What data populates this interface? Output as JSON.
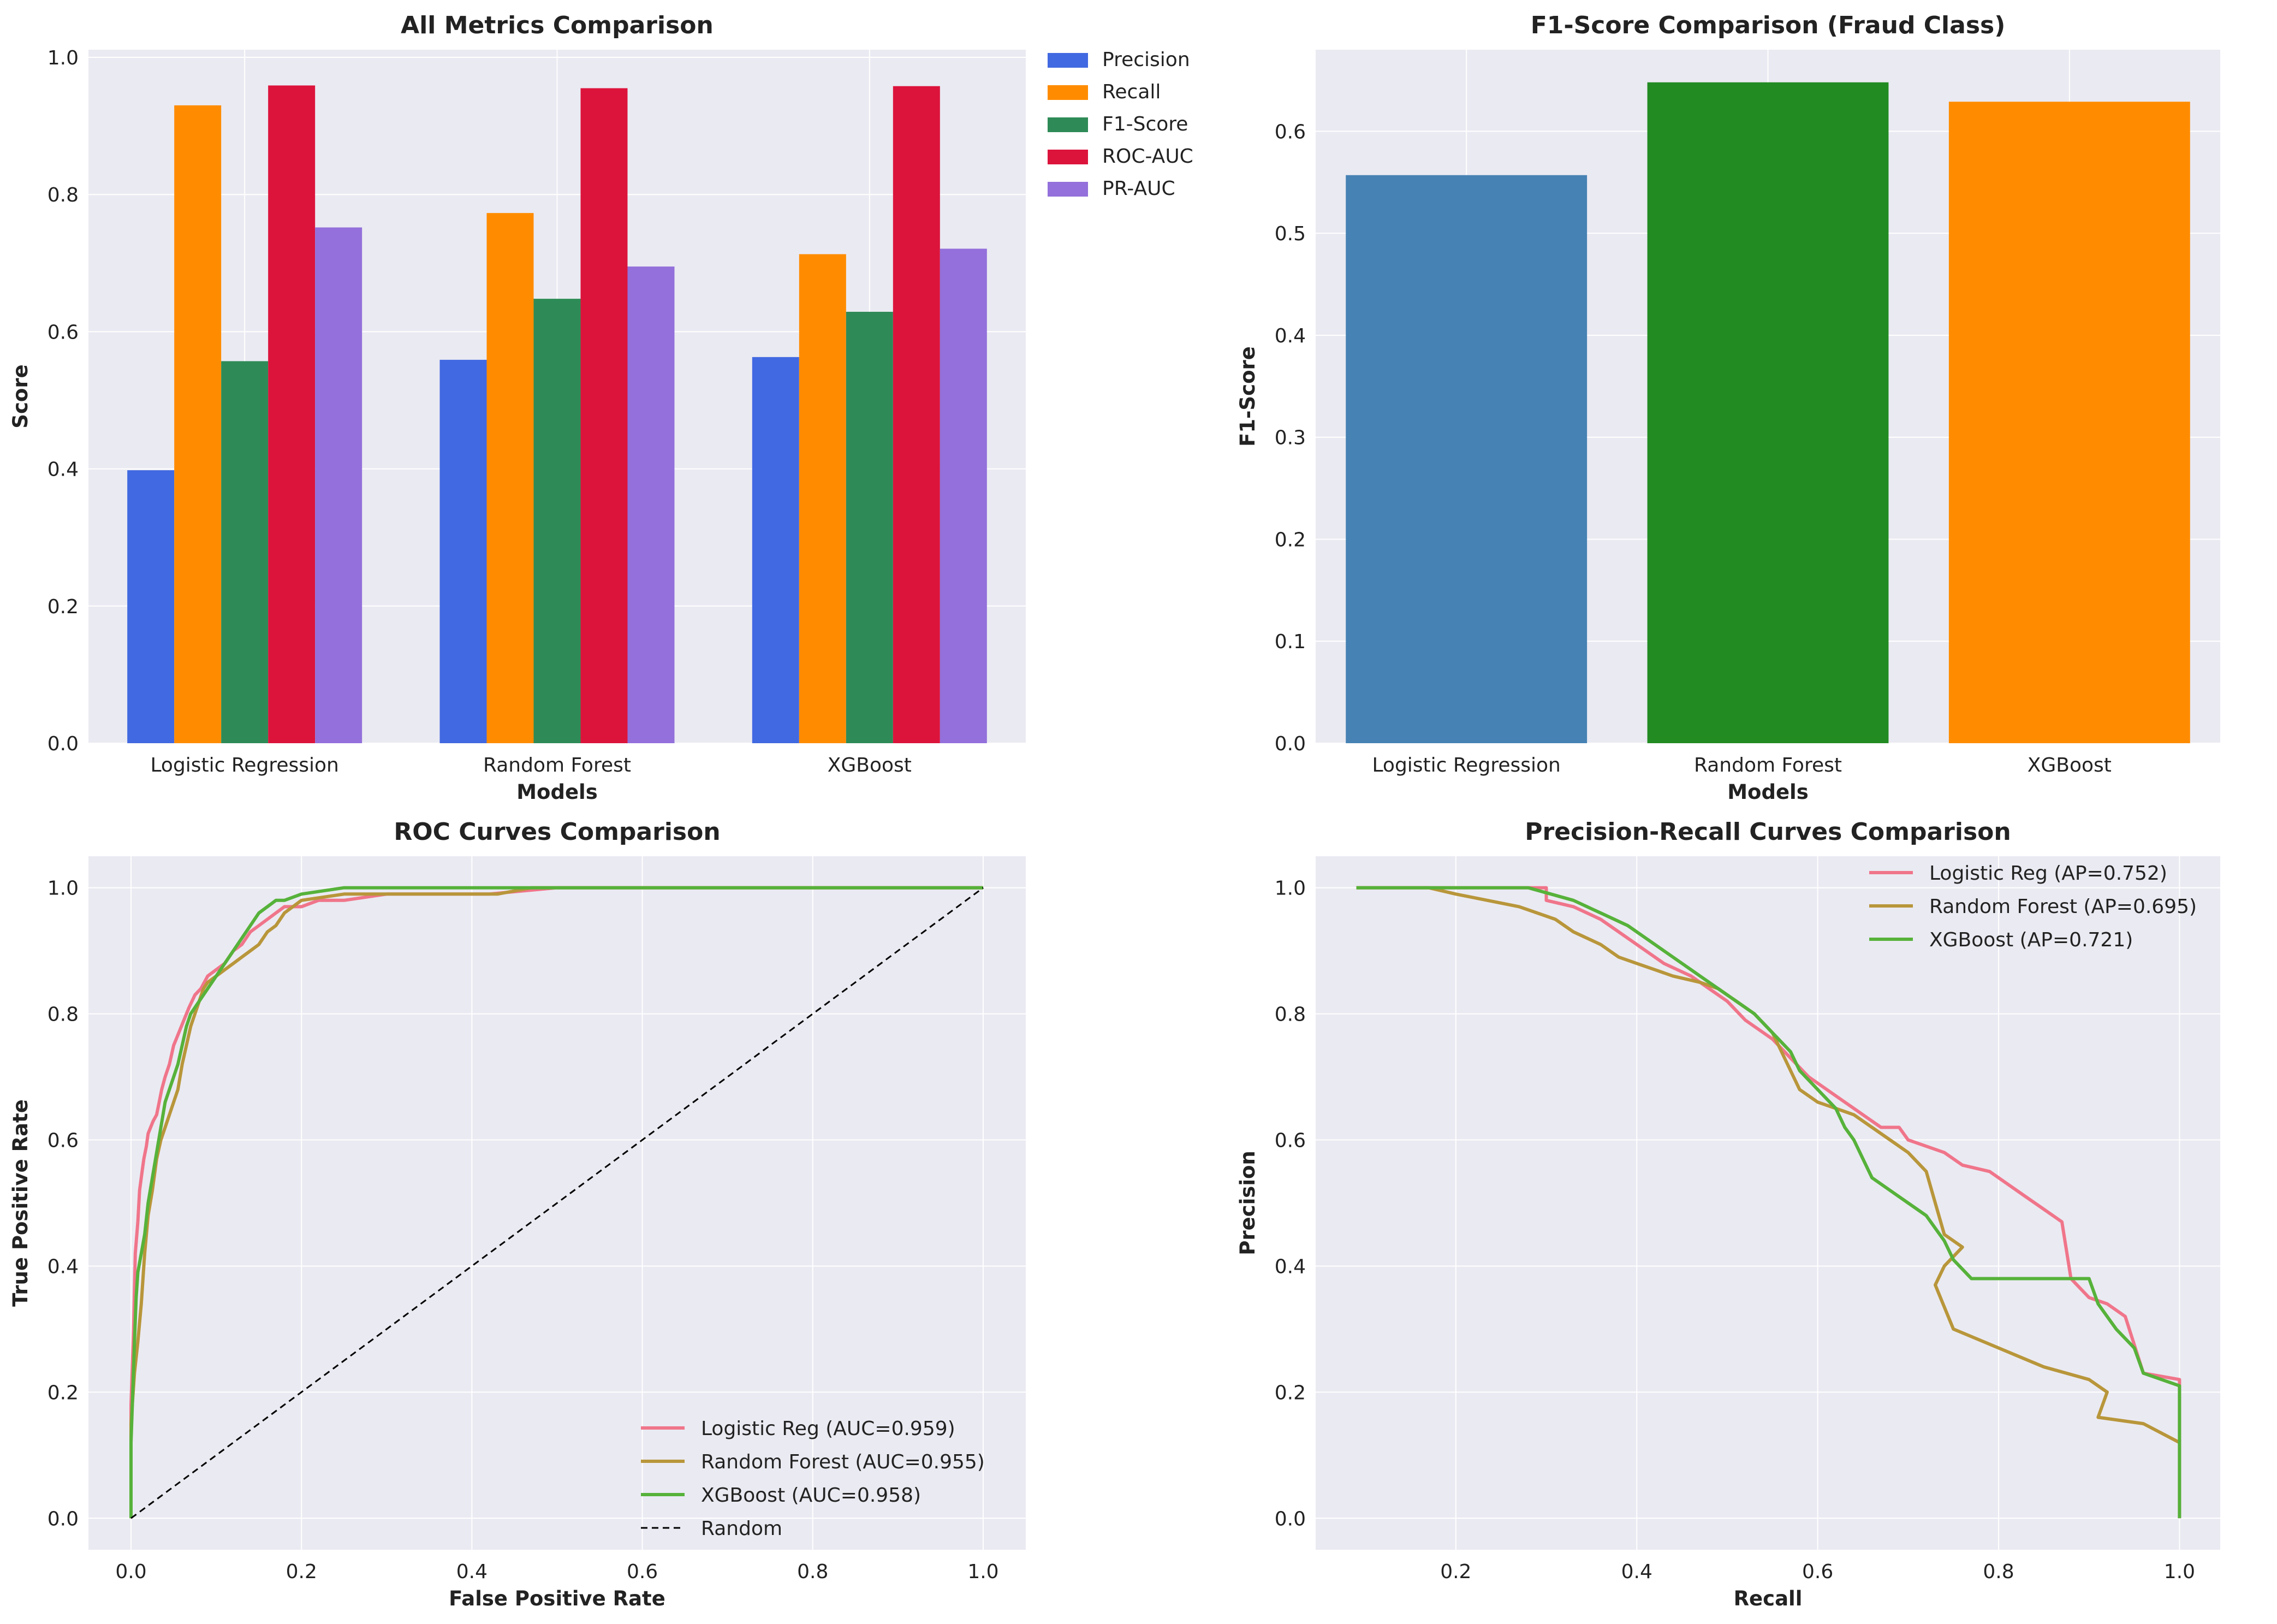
{
  "chart_data": [
    {
      "id": "all_metrics",
      "type": "bar",
      "title": "All Metrics Comparison",
      "xlabel": "Models",
      "ylabel": "Score",
      "ylim": [
        0,
        1.0
      ],
      "yticks": [
        0.0,
        0.2,
        0.4,
        0.6,
        0.8,
        1.0
      ],
      "ytick_labels": [
        "0.0",
        "0.2",
        "0.4",
        "0.6",
        "0.8",
        "1.0"
      ],
      "categories": [
        "Logistic Regression",
        "Random Forest",
        "XGBoost"
      ],
      "series": [
        {
          "name": "Precision",
          "color": "#4169e1",
          "values": [
            0.398,
            0.559,
            0.563
          ]
        },
        {
          "name": "Recall",
          "color": "#ff8c00",
          "values": [
            0.93,
            0.773,
            0.713
          ]
        },
        {
          "name": "F1-Score",
          "color": "#2e8b57",
          "values": [
            0.557,
            0.648,
            0.629
          ]
        },
        {
          "name": "ROC-AUC",
          "color": "#dc143c",
          "values": [
            0.959,
            0.955,
            0.958
          ]
        },
        {
          "name": "PR-AUC",
          "color": "#9370db",
          "values": [
            0.752,
            0.695,
            0.721
          ]
        }
      ],
      "legend_position": "outside-right"
    },
    {
      "id": "f1_comparison",
      "type": "bar",
      "title": "F1-Score Comparison (Fraud Class)",
      "xlabel": "Models",
      "ylabel": "F1-Score",
      "ylim": [
        0,
        0.68
      ],
      "yticks": [
        0.0,
        0.1,
        0.2,
        0.3,
        0.4,
        0.5,
        0.6
      ],
      "ytick_labels": [
        "0.0",
        "0.1",
        "0.2",
        "0.3",
        "0.4",
        "0.5",
        "0.6"
      ],
      "categories": [
        "Logistic Regression",
        "Random Forest",
        "XGBoost"
      ],
      "values": [
        0.557,
        0.648,
        0.629
      ],
      "colors": [
        "#4682b4",
        "#228b22",
        "#ff8c00"
      ]
    },
    {
      "id": "roc",
      "type": "line",
      "title": "ROC Curves Comparison",
      "xlabel": "False Positive Rate",
      "ylabel": "True Positive Rate",
      "xlim": [
        -0.05,
        1.05
      ],
      "ylim": [
        -0.05,
        1.05
      ],
      "xticks": [
        0.0,
        0.2,
        0.4,
        0.6,
        0.8,
        1.0
      ],
      "xtick_labels": [
        "0.0",
        "0.2",
        "0.4",
        "0.6",
        "0.8",
        "1.0"
      ],
      "yticks": [
        0.0,
        0.2,
        0.4,
        0.6,
        0.8,
        1.0
      ],
      "ytick_labels": [
        "0.0",
        "0.2",
        "0.4",
        "0.6",
        "0.8",
        "1.0"
      ],
      "legend_position": "lower-right",
      "series": [
        {
          "name": "Logistic Reg (AUC=0.959)",
          "color": "#f0758a",
          "dash": false,
          "x": [
            0,
            0,
            0.003,
            0.005,
            0.008,
            0.01,
            0.013,
            0.015,
            0.018,
            0.02,
            0.023,
            0.026,
            0.03,
            0.033,
            0.036,
            0.04,
            0.045,
            0.05,
            0.056,
            0.062,
            0.068,
            0.075,
            0.082,
            0.09,
            0.1,
            0.11,
            0.12,
            0.13,
            0.14,
            0.15,
            0.16,
            0.17,
            0.18,
            0.2,
            0.22,
            0.25,
            0.3,
            0.35,
            0.42,
            0.5,
            0.6,
            0.8,
            1.0
          ],
          "y": [
            0,
            0.18,
            0.3,
            0.42,
            0.47,
            0.52,
            0.55,
            0.57,
            0.59,
            0.61,
            0.62,
            0.63,
            0.64,
            0.66,
            0.68,
            0.7,
            0.72,
            0.75,
            0.77,
            0.79,
            0.81,
            0.83,
            0.84,
            0.86,
            0.87,
            0.88,
            0.9,
            0.91,
            0.93,
            0.94,
            0.95,
            0.96,
            0.97,
            0.97,
            0.98,
            0.98,
            0.99,
            0.99,
            0.99,
            1.0,
            1.0,
            1.0,
            1.0
          ]
        },
        {
          "name": "Random Forest (AUC=0.955)",
          "color": "#b8963a",
          "dash": false,
          "x": [
            0,
            0,
            0.004,
            0.008,
            0.012,
            0.016,
            0.02,
            0.025,
            0.03,
            0.035,
            0.04,
            0.045,
            0.05,
            0.055,
            0.06,
            0.065,
            0.07,
            0.075,
            0.08,
            0.085,
            0.09,
            0.1,
            0.11,
            0.12,
            0.13,
            0.14,
            0.15,
            0.16,
            0.17,
            0.18,
            0.2,
            0.25,
            0.3,
            0.35,
            0.43,
            0.47,
            0.5,
            0.6,
            0.8,
            1.0
          ],
          "y": [
            0,
            0.15,
            0.23,
            0.28,
            0.34,
            0.42,
            0.48,
            0.52,
            0.57,
            0.6,
            0.62,
            0.64,
            0.66,
            0.68,
            0.72,
            0.75,
            0.78,
            0.8,
            0.82,
            0.84,
            0.85,
            0.86,
            0.87,
            0.88,
            0.89,
            0.9,
            0.91,
            0.93,
            0.94,
            0.96,
            0.98,
            0.99,
            0.99,
            0.99,
            0.99,
            1.0,
            1.0,
            1.0,
            1.0,
            1.0
          ]
        },
        {
          "name": "XGBoost (AUC=0.958)",
          "color": "#56b23a",
          "dash": false,
          "x": [
            0,
            0,
            0.002,
            0.004,
            0.006,
            0.008,
            0.012,
            0.016,
            0.02,
            0.025,
            0.03,
            0.035,
            0.04,
            0.045,
            0.05,
            0.055,
            0.06,
            0.065,
            0.07,
            0.08,
            0.09,
            0.1,
            0.11,
            0.12,
            0.13,
            0.14,
            0.15,
            0.16,
            0.17,
            0.18,
            0.2,
            0.25,
            0.3,
            0.4,
            0.6,
            0.8,
            1.0
          ],
          "y": [
            0,
            0.12,
            0.2,
            0.28,
            0.35,
            0.39,
            0.42,
            0.45,
            0.5,
            0.54,
            0.58,
            0.62,
            0.66,
            0.68,
            0.7,
            0.72,
            0.75,
            0.78,
            0.8,
            0.82,
            0.84,
            0.86,
            0.88,
            0.9,
            0.92,
            0.94,
            0.96,
            0.97,
            0.98,
            0.98,
            0.99,
            1.0,
            1.0,
            1.0,
            1.0,
            1.0,
            1.0
          ]
        },
        {
          "name": "Random",
          "color": "#000000",
          "dash": true,
          "x": [
            0,
            1
          ],
          "y": [
            0,
            1
          ]
        }
      ]
    },
    {
      "id": "pr",
      "type": "line",
      "title": "Precision-Recall Curves Comparison",
      "xlabel": "Recall",
      "ylabel": "Precision",
      "xlim": [
        0.045,
        1.045
      ],
      "ylim": [
        -0.05,
        1.05
      ],
      "xticks": [
        0.2,
        0.4,
        0.6,
        0.8,
        1.0
      ],
      "xtick_labels": [
        "0.2",
        "0.4",
        "0.6",
        "0.8",
        "1.0"
      ],
      "yticks": [
        0.0,
        0.2,
        0.4,
        0.6,
        0.8,
        1.0
      ],
      "ytick_labels": [
        "0.0",
        "0.2",
        "0.4",
        "0.6",
        "0.8",
        "1.0"
      ],
      "legend_position": "upper-right",
      "series": [
        {
          "name": "Logistic Reg (AP=0.752)",
          "color": "#f0758a",
          "dash": false,
          "x": [
            0.09,
            0.3,
            0.3,
            0.33,
            0.36,
            0.38,
            0.41,
            0.43,
            0.46,
            0.48,
            0.5,
            0.52,
            0.55,
            0.57,
            0.59,
            0.61,
            0.63,
            0.65,
            0.67,
            0.69,
            0.7,
            0.72,
            0.74,
            0.76,
            0.79,
            0.81,
            0.83,
            0.85,
            0.87,
            0.88,
            0.9,
            0.92,
            0.94,
            0.96,
            1.0,
            1.0
          ],
          "y": [
            1.0,
            1.0,
            0.98,
            0.97,
            0.95,
            0.93,
            0.9,
            0.88,
            0.86,
            0.84,
            0.82,
            0.79,
            0.76,
            0.73,
            0.7,
            0.68,
            0.66,
            0.64,
            0.62,
            0.62,
            0.6,
            0.59,
            0.58,
            0.56,
            0.55,
            0.53,
            0.51,
            0.49,
            0.47,
            0.38,
            0.35,
            0.34,
            0.32,
            0.23,
            0.22,
            0.0
          ]
        },
        {
          "name": "Random Forest (AP=0.695)",
          "color": "#b8963a",
          "dash": false,
          "x": [
            0.09,
            0.17,
            0.2,
            0.27,
            0.31,
            0.33,
            0.36,
            0.38,
            0.4,
            0.42,
            0.44,
            0.47,
            0.49,
            0.51,
            0.53,
            0.55,
            0.57,
            0.58,
            0.6,
            0.62,
            0.64,
            0.66,
            0.68,
            0.7,
            0.72,
            0.73,
            0.74,
            0.76,
            0.74,
            0.73,
            0.75,
            0.8,
            0.85,
            0.9,
            0.92,
            0.91,
            0.96,
            1.0
          ],
          "y": [
            1.0,
            1.0,
            0.99,
            0.97,
            0.95,
            0.93,
            0.91,
            0.89,
            0.88,
            0.87,
            0.86,
            0.85,
            0.84,
            0.82,
            0.8,
            0.77,
            0.71,
            0.68,
            0.66,
            0.65,
            0.64,
            0.62,
            0.6,
            0.58,
            0.55,
            0.5,
            0.45,
            0.43,
            0.4,
            0.37,
            0.3,
            0.27,
            0.24,
            0.22,
            0.2,
            0.16,
            0.15,
            0.12
          ]
        },
        {
          "name": "XGBoost (AP=0.721)",
          "color": "#56b23a",
          "dash": false,
          "x": [
            0.09,
            0.28,
            0.33,
            0.36,
            0.39,
            0.41,
            0.43,
            0.45,
            0.47,
            0.49,
            0.51,
            0.53,
            0.55,
            0.57,
            0.58,
            0.6,
            0.62,
            0.63,
            0.64,
            0.65,
            0.66,
            0.68,
            0.7,
            0.72,
            0.73,
            0.74,
            0.75,
            0.77,
            0.82,
            0.86,
            0.9,
            0.91,
            0.93,
            0.95,
            0.96,
            1.0,
            1.0
          ],
          "y": [
            1.0,
            1.0,
            0.98,
            0.96,
            0.94,
            0.92,
            0.9,
            0.88,
            0.86,
            0.84,
            0.82,
            0.8,
            0.77,
            0.74,
            0.71,
            0.68,
            0.65,
            0.62,
            0.6,
            0.57,
            0.54,
            0.52,
            0.5,
            0.48,
            0.46,
            0.44,
            0.41,
            0.38,
            0.38,
            0.38,
            0.38,
            0.34,
            0.3,
            0.27,
            0.23,
            0.21,
            0.0
          ]
        }
      ]
    }
  ]
}
